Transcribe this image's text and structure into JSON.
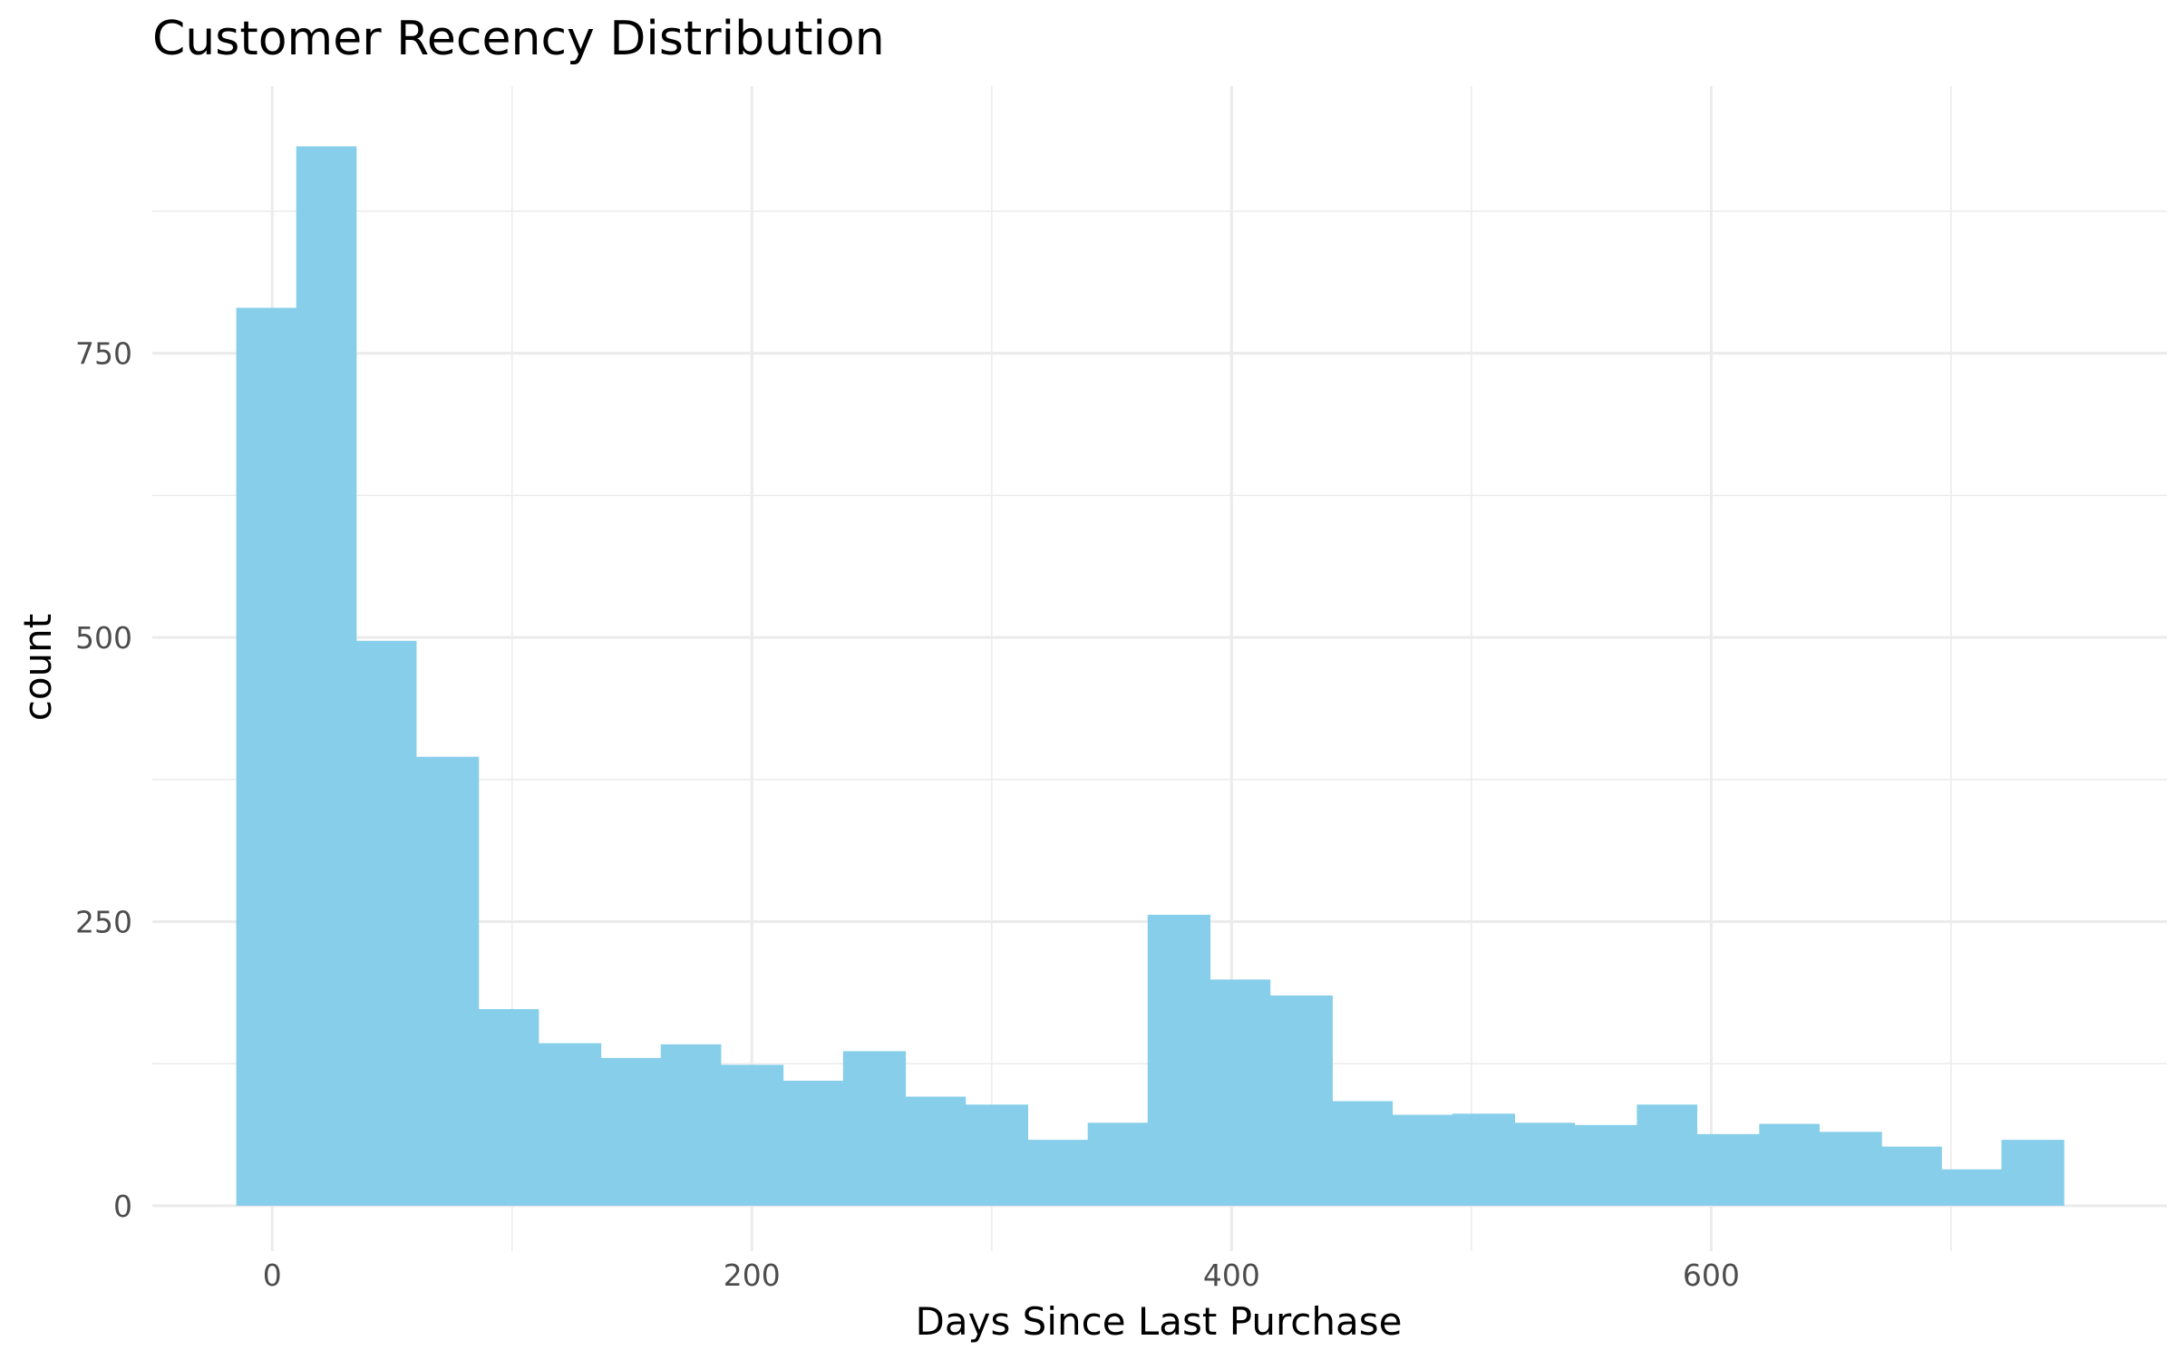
{
  "chart_data": {
    "type": "bar",
    "title": "Customer Recency Distribution",
    "xlabel": "Days Since Last Purchase",
    "ylabel": "count",
    "bin_edges": [
      -15,
      10,
      35,
      60,
      86,
      111,
      137,
      162,
      187,
      213,
      238,
      264,
      289,
      315,
      340,
      365,
      391,
      416,
      442,
      467,
      492,
      518,
      543,
      569,
      594,
      620,
      645,
      671,
      696,
      721,
      747
    ],
    "values": [
      790,
      932,
      497,
      395,
      173,
      143,
      130,
      142,
      124,
      110,
      136,
      96,
      89,
      58,
      73,
      256,
      199,
      185,
      92,
      80,
      81,
      73,
      71,
      89,
      63,
      72,
      65,
      52,
      32,
      58
    ],
    "xlim": [
      -50,
      790
    ],
    "ylim": [
      -40,
      985
    ],
    "x_ticks": [
      0,
      200,
      400,
      600
    ],
    "x_tick_labels": [
      "0",
      "200",
      "400",
      "600"
    ],
    "x_minor_ticks": [
      100,
      300,
      500,
      700
    ],
    "y_ticks": [
      0,
      250,
      500,
      750
    ],
    "y_tick_labels": [
      "0",
      "250",
      "500",
      "750"
    ],
    "y_minor_ticks": [
      125,
      375,
      625,
      875
    ],
    "bar_color": "#87CEEB",
    "grid": true,
    "legend": "none"
  }
}
